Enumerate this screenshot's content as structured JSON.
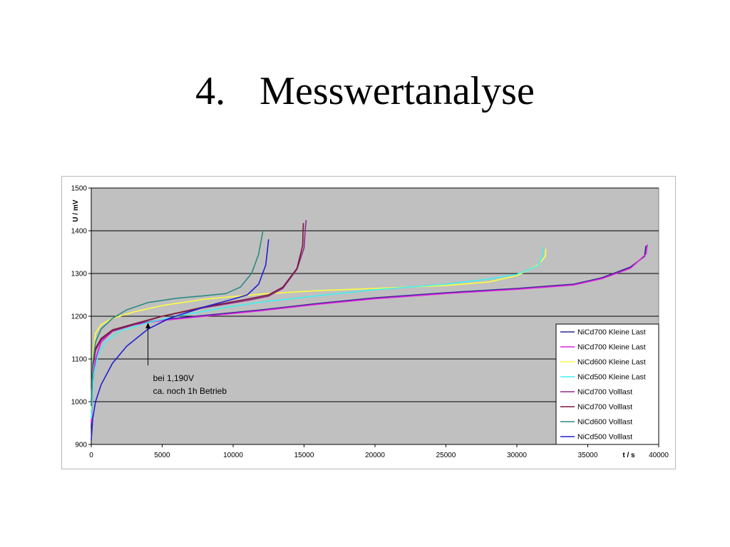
{
  "slide": {
    "number": "4.",
    "title": "Messwertanalyse"
  },
  "chart_data": {
    "type": "line",
    "title": "",
    "xlabel": "t / s",
    "ylabel": "U / mV",
    "xlim": [
      0,
      40000
    ],
    "ylim": [
      900,
      1500
    ],
    "x_ticks": [
      0,
      5000,
      10000,
      15000,
      20000,
      25000,
      30000,
      35000,
      40000
    ],
    "y_ticks": [
      900,
      1000,
      1100,
      1200,
      1300,
      1400,
      1500
    ],
    "grid": "horizontal",
    "plot_background": "#c0c0c0",
    "legend_position": "right",
    "annotation": {
      "lines": [
        "bei 1,190V",
        "ca. noch 1h Betrieb"
      ],
      "point": [
        4000,
        1185
      ]
    },
    "series": [
      {
        "name": "NiCd700 Kleine Last",
        "color": "#2a2a8c",
        "points": [
          [
            0,
            940
          ],
          [
            100,
            1040
          ],
          [
            300,
            1100
          ],
          [
            700,
            1140
          ],
          [
            1500,
            1165
          ],
          [
            3000,
            1180
          ],
          [
            5000,
            1192
          ],
          [
            8000,
            1202
          ],
          [
            12000,
            1215
          ],
          [
            16000,
            1230
          ],
          [
            20000,
            1243
          ],
          [
            25000,
            1255
          ],
          [
            30000,
            1265
          ],
          [
            34000,
            1275
          ],
          [
            36000,
            1290
          ],
          [
            38000,
            1315
          ],
          [
            39000,
            1340
          ],
          [
            39100,
            1365
          ]
        ]
      },
      {
        "name": "NiCd700 Kleine Last",
        "color": "#e020e0",
        "points": [
          [
            0,
            950
          ],
          [
            100,
            1045
          ],
          [
            300,
            1100
          ],
          [
            700,
            1140
          ],
          [
            1500,
            1165
          ],
          [
            3000,
            1180
          ],
          [
            5000,
            1190
          ],
          [
            8000,
            1200
          ],
          [
            12000,
            1213
          ],
          [
            16000,
            1228
          ],
          [
            20000,
            1241
          ],
          [
            25000,
            1253
          ],
          [
            30000,
            1263
          ],
          [
            34000,
            1273
          ],
          [
            36000,
            1288
          ],
          [
            38000,
            1312
          ],
          [
            39100,
            1345
          ],
          [
            39200,
            1368
          ]
        ]
      },
      {
        "name": "NiCd600 Kleine Last",
        "color": "#ffff40",
        "points": [
          [
            0,
            980
          ],
          [
            100,
            1100
          ],
          [
            300,
            1160
          ],
          [
            700,
            1180
          ],
          [
            1500,
            1195
          ],
          [
            3000,
            1210
          ],
          [
            5000,
            1225
          ],
          [
            8000,
            1240
          ],
          [
            12000,
            1252
          ],
          [
            16000,
            1260
          ],
          [
            20000,
            1265
          ],
          [
            25000,
            1272
          ],
          [
            28000,
            1280
          ],
          [
            30000,
            1295
          ],
          [
            31500,
            1320
          ],
          [
            32000,
            1340
          ],
          [
            32050,
            1358
          ]
        ]
      },
      {
        "name": "NiCd500 Kleine Last",
        "color": "#40f0f0",
        "points": [
          [
            0,
            960
          ],
          [
            150,
            1060
          ],
          [
            500,
            1110
          ],
          [
            1000,
            1140
          ],
          [
            2000,
            1165
          ],
          [
            4000,
            1185
          ],
          [
            6000,
            1200
          ],
          [
            9000,
            1218
          ],
          [
            12000,
            1233
          ],
          [
            16000,
            1248
          ],
          [
            20000,
            1262
          ],
          [
            25000,
            1275
          ],
          [
            28000,
            1287
          ],
          [
            30000,
            1298
          ],
          [
            31500,
            1318
          ],
          [
            31800,
            1340
          ],
          [
            31850,
            1362
          ]
        ]
      },
      {
        "name": "NiCd700 Volllast",
        "color": "#8e2a8e",
        "points": [
          [
            0,
            990
          ],
          [
            100,
            1080
          ],
          [
            300,
            1120
          ],
          [
            700,
            1145
          ],
          [
            1500,
            1165
          ],
          [
            3000,
            1180
          ],
          [
            5000,
            1200
          ],
          [
            8000,
            1220
          ],
          [
            11000,
            1237
          ],
          [
            12500,
            1247
          ],
          [
            13500,
            1265
          ],
          [
            14500,
            1310
          ],
          [
            15000,
            1360
          ],
          [
            15100,
            1410
          ],
          [
            15150,
            1425
          ]
        ]
      },
      {
        "name": "NiCd700 Volllast",
        "color": "#7a1838",
        "points": [
          [
            0,
            1000
          ],
          [
            100,
            1085
          ],
          [
            300,
            1125
          ],
          [
            700,
            1148
          ],
          [
            1500,
            1168
          ],
          [
            3000,
            1182
          ],
          [
            5000,
            1200
          ],
          [
            8000,
            1222
          ],
          [
            11000,
            1240
          ],
          [
            12500,
            1250
          ],
          [
            13500,
            1268
          ],
          [
            14500,
            1312
          ],
          [
            14900,
            1365
          ],
          [
            14950,
            1418
          ]
        ]
      },
      {
        "name": "NiCd600 Volllast",
        "color": "#2a8a80",
        "points": [
          [
            0,
            990
          ],
          [
            100,
            1090
          ],
          [
            300,
            1140
          ],
          [
            700,
            1170
          ],
          [
            1500,
            1195
          ],
          [
            2500,
            1215
          ],
          [
            4000,
            1232
          ],
          [
            6000,
            1242
          ],
          [
            8000,
            1248
          ],
          [
            9500,
            1253
          ],
          [
            10500,
            1268
          ],
          [
            11300,
            1300
          ],
          [
            11800,
            1345
          ],
          [
            12100,
            1400
          ]
        ]
      },
      {
        "name": "NiCd500 Volllast",
        "color": "#2020d0",
        "points": [
          [
            0,
            910
          ],
          [
            100,
            960
          ],
          [
            300,
            1000
          ],
          [
            700,
            1040
          ],
          [
            1500,
            1090
          ],
          [
            2500,
            1130
          ],
          [
            4000,
            1170
          ],
          [
            5500,
            1195
          ],
          [
            8000,
            1222
          ],
          [
            10000,
            1240
          ],
          [
            11000,
            1250
          ],
          [
            11800,
            1275
          ],
          [
            12300,
            1320
          ],
          [
            12500,
            1380
          ]
        ]
      }
    ]
  }
}
